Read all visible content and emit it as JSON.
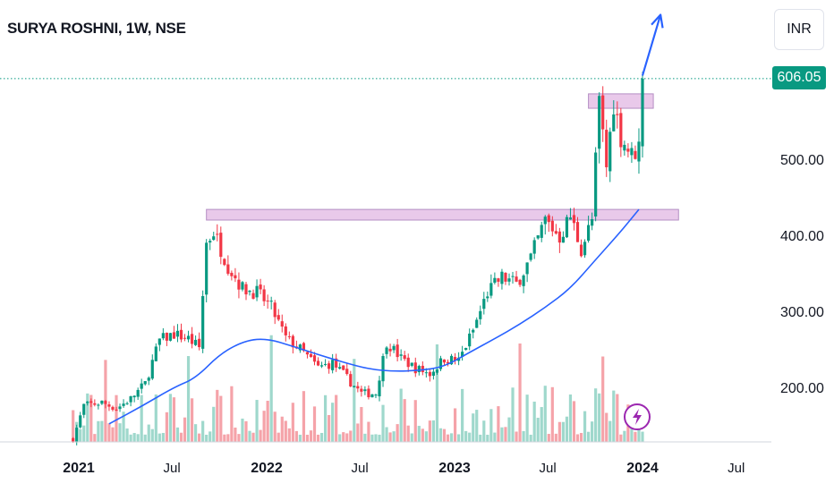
{
  "header": {
    "title": "SURYA ROSHNI, 1W, NSE"
  },
  "scale": {
    "currency": "INR"
  },
  "last_price": {
    "label": "606.05",
    "value": 606.05
  },
  "chart_data": {
    "type": "candlestick",
    "symbol": "SURYA ROSHNI",
    "interval": "1W",
    "exchange": "NSE",
    "currency": "INR",
    "x_ticks": [
      "2021",
      "Jul",
      "2022",
      "Jul",
      "2023",
      "Jul",
      "2024",
      "Jul"
    ],
    "y_ticks": [
      "200.00",
      "300.00",
      "400.00",
      "500.00"
    ],
    "y_tick_values": [
      200,
      300,
      400,
      500
    ],
    "ylim": [
      130,
      715
    ],
    "last_price": 606.05,
    "colors": {
      "up": "#089981",
      "down": "#f23645",
      "moving_average": "#2962ff",
      "volume_up": "#9fd8cc",
      "volume_down": "#f5a3a9",
      "zone_fill": "#e9c9ea",
      "zone_stroke": "#b48ec4",
      "arrow": "#2962ff",
      "badge": "#9c27b0"
    },
    "zones": [
      {
        "from": "2021-09-06",
        "to": "2024-03-11",
        "low": 420,
        "high": 434
      },
      {
        "from": "2023-09-18",
        "to": "2024-01-22",
        "low": 567,
        "high": 586
      }
    ],
    "projection_arrow": {
      "from": [
        "2024-01-01",
        610
      ],
      "to": [
        "2024-02-05",
        690
      ]
    },
    "moving_average_points": [
      [
        "2021-03-01",
        152
      ],
      [
        "2021-05-03",
        175
      ],
      [
        "2021-07-05",
        200
      ],
      [
        "2021-08-16",
        212
      ],
      [
        "2021-10-04",
        245
      ],
      [
        "2021-11-22",
        262
      ],
      [
        "2022-01-03",
        264
      ],
      [
        "2022-02-21",
        254
      ],
      [
        "2022-04-11",
        243
      ],
      [
        "2022-05-30",
        233
      ],
      [
        "2022-07-18",
        224
      ],
      [
        "2022-09-05",
        221
      ],
      [
        "2022-10-24",
        222
      ],
      [
        "2022-12-12",
        227
      ],
      [
        "2023-01-30",
        246
      ],
      [
        "2023-03-20",
        264
      ],
      [
        "2023-05-08",
        283
      ],
      [
        "2023-06-26",
        305
      ],
      [
        "2023-08-14",
        330
      ],
      [
        "2023-10-02",
        368
      ],
      [
        "2023-11-20",
        405
      ],
      [
        "2023-12-25",
        434
      ]
    ],
    "price_path": [
      [
        "2020-12-21",
        132
      ],
      [
        "2021-01-11",
        176
      ],
      [
        "2021-02-15",
        180
      ],
      [
        "2021-03-15",
        172
      ],
      [
        "2021-04-12",
        185
      ],
      [
        "2021-05-10",
        205
      ],
      [
        "2021-06-07",
        262
      ],
      [
        "2021-07-05",
        270
      ],
      [
        "2021-08-02",
        264
      ],
      [
        "2021-08-23",
        252
      ],
      [
        "2021-09-06",
        390
      ],
      [
        "2021-09-20",
        405
      ],
      [
        "2021-10-18",
        360
      ],
      [
        "2021-11-15",
        330
      ],
      [
        "2021-12-13",
        325
      ],
      [
        "2022-01-10",
        305
      ],
      [
        "2022-02-07",
        265
      ],
      [
        "2022-03-07",
        250
      ],
      [
        "2022-04-11",
        226
      ],
      [
        "2022-05-09",
        232
      ],
      [
        "2022-06-06",
        212
      ],
      [
        "2022-07-04",
        192
      ],
      [
        "2022-08-01",
        192
      ],
      [
        "2022-08-22",
        260
      ],
      [
        "2022-09-19",
        238
      ],
      [
        "2022-10-17",
        225
      ],
      [
        "2022-11-14",
        218
      ],
      [
        "2022-12-12",
        238
      ],
      [
        "2023-01-09",
        235
      ],
      [
        "2023-02-06",
        275
      ],
      [
        "2023-03-06",
        325
      ],
      [
        "2023-04-03",
        345
      ],
      [
        "2023-05-01",
        336
      ],
      [
        "2023-05-29",
        370
      ],
      [
        "2023-06-26",
        420
      ],
      [
        "2023-07-24",
        398
      ],
      [
        "2023-08-14",
        425
      ],
      [
        "2023-09-04",
        382
      ],
      [
        "2023-09-25",
        420
      ],
      [
        "2023-10-09",
        575
      ],
      [
        "2023-10-23",
        490
      ],
      [
        "2023-11-06",
        575
      ],
      [
        "2023-11-20",
        530
      ],
      [
        "2023-12-11",
        505
      ],
      [
        "2023-12-25",
        518
      ],
      [
        "2024-01-01",
        606
      ]
    ]
  }
}
